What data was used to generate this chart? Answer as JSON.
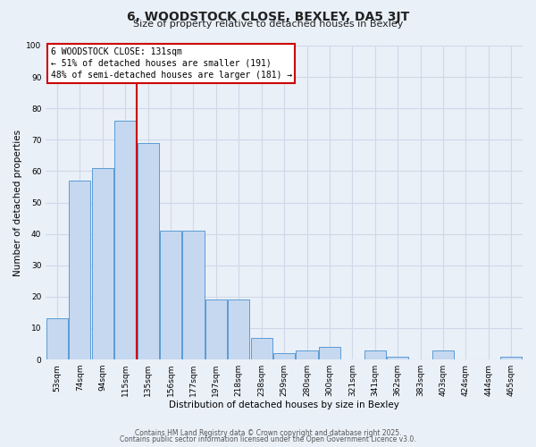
{
  "title": "6, WOODSTOCK CLOSE, BEXLEY, DA5 3JT",
  "subtitle": "Size of property relative to detached houses in Bexley",
  "xlabel": "Distribution of detached houses by size in Bexley",
  "ylabel": "Number of detached properties",
  "categories": [
    "53sqm",
    "74sqm",
    "94sqm",
    "115sqm",
    "135sqm",
    "156sqm",
    "177sqm",
    "197sqm",
    "218sqm",
    "238sqm",
    "259sqm",
    "280sqm",
    "300sqm",
    "321sqm",
    "341sqm",
    "362sqm",
    "383sqm",
    "403sqm",
    "424sqm",
    "444sqm",
    "465sqm"
  ],
  "values": [
    13,
    57,
    61,
    76,
    69,
    41,
    41,
    19,
    19,
    7,
    2,
    3,
    4,
    0,
    3,
    1,
    0,
    3,
    0,
    0,
    1
  ],
  "bar_color": "#c5d8f0",
  "bar_edge_color": "#5b9bd5",
  "vline_color": "#cc0000",
  "annotation_text": "6 WOODSTOCK CLOSE: 131sqm\n← 51% of detached houses are smaller (191)\n48% of semi-detached houses are larger (181) →",
  "annotation_box_color": "#ffffff",
  "annotation_box_edge_color": "#cc0000",
  "ylim": [
    0,
    100
  ],
  "yticks": [
    0,
    10,
    20,
    30,
    40,
    50,
    60,
    70,
    80,
    90,
    100
  ],
  "grid_color": "#d0d8e8",
  "footer1": "Contains HM Land Registry data © Crown copyright and database right 2025.",
  "footer2": "Contains public sector information licensed under the Open Government Licence v3.0.",
  "bg_color": "#eaf0f8",
  "title_fontsize": 10,
  "subtitle_fontsize": 8,
  "axis_label_fontsize": 7.5,
  "tick_fontsize": 6.5,
  "annotation_fontsize": 7,
  "footer_fontsize": 5.5
}
